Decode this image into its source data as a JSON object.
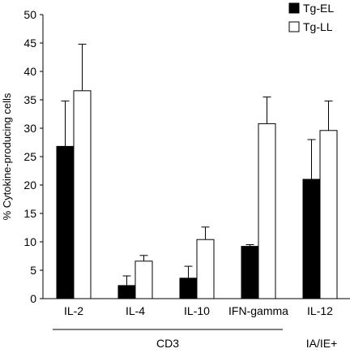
{
  "chart_data": {
    "type": "bar",
    "ylabel": "% Cytokine-producing cells",
    "ylim": [
      0,
      50
    ],
    "yticks": [
      0,
      5,
      10,
      15,
      20,
      25,
      30,
      35,
      40,
      45,
      50
    ],
    "categories": [
      "IL-2",
      "IL-4",
      "IL-10",
      "IFN-gamma",
      "IL-12"
    ],
    "groups": [
      {
        "label": "CD3",
        "categories": [
          "IL-2",
          "IL-4",
          "IL-10",
          "IFN-gamma"
        ]
      },
      {
        "label": "IA/IE+",
        "categories": [
          "IL-12"
        ]
      }
    ],
    "legend_position": "top-right",
    "grid": false,
    "series": [
      {
        "name": "Tg-EL",
        "color": "#000000",
        "values": [
          26.8,
          2.3,
          3.6,
          9.2,
          21.0
        ],
        "errors": [
          8.0,
          1.7,
          2.1,
          0.3,
          7.0
        ]
      },
      {
        "name": "Tg-LL",
        "color": "#ffffff",
        "values": [
          36.6,
          6.6,
          10.4,
          30.8,
          29.6
        ],
        "errors": [
          8.2,
          1.0,
          2.2,
          4.7,
          5.2
        ]
      }
    ]
  }
}
